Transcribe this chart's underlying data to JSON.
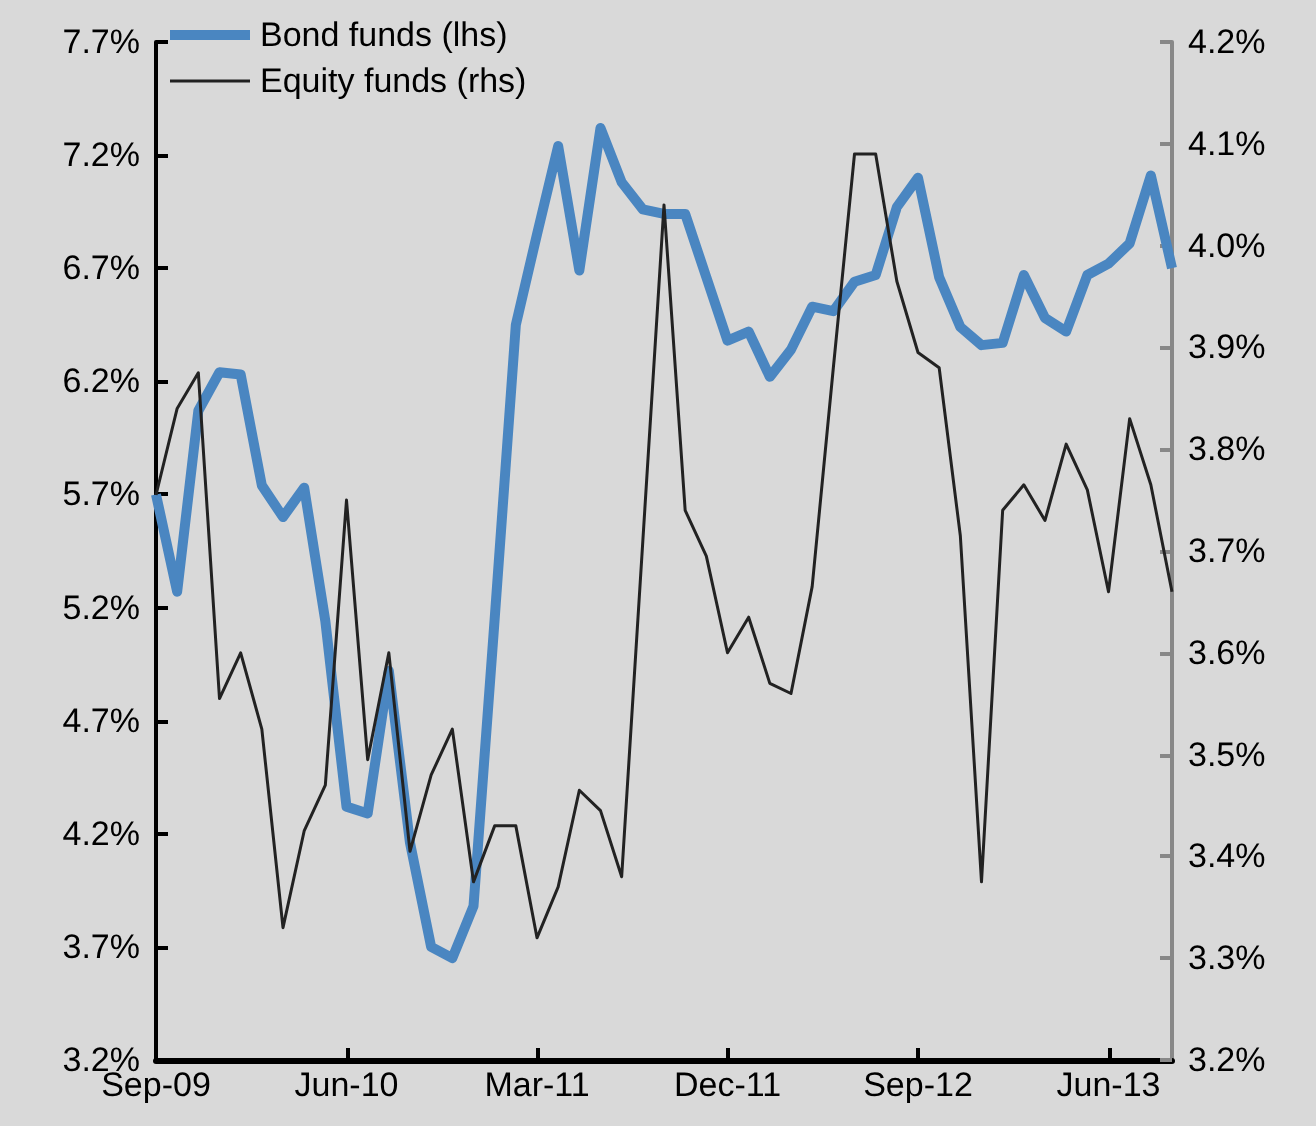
{
  "chart_data": {
    "type": "line",
    "categories": [
      "Sep-09",
      null,
      null,
      null,
      null,
      null,
      null,
      null,
      null,
      "Jun-10",
      null,
      null,
      null,
      null,
      null,
      null,
      null,
      null,
      "Mar-11",
      null,
      null,
      null,
      null,
      null,
      null,
      null,
      null,
      "Dec-11",
      null,
      null,
      null,
      null,
      null,
      null,
      null,
      null,
      "Sep-12",
      null,
      null,
      null,
      null,
      null,
      null,
      null,
      null,
      "Jun-13",
      null,
      null,
      null
    ],
    "series": [
      {
        "name": "Bond funds (lhs)",
        "color": "#4a86c1",
        "values": [
          5.7,
          5.27,
          6.07,
          6.24,
          6.23,
          5.74,
          5.6,
          5.73,
          5.14,
          4.32,
          4.29,
          4.92,
          4.16,
          3.7,
          3.65,
          3.88,
          5.15,
          6.45,
          6.85,
          7.24,
          6.69,
          7.32,
          7.08,
          6.96,
          6.94,
          6.94,
          6.66,
          6.38,
          6.42,
          6.22,
          6.34,
          6.53,
          6.51,
          6.64,
          6.67,
          6.97,
          7.1,
          6.66,
          6.44,
          6.36,
          6.37,
          6.67,
          6.48,
          6.42,
          6.67,
          6.72,
          6.81,
          7.11,
          6.7
        ]
      },
      {
        "name": "Equity funds (rhs)",
        "color": "#222222",
        "axis": "y2",
        "values": [
          3.755,
          3.84,
          3.875,
          3.555,
          3.6,
          3.525,
          3.33,
          3.425,
          3.47,
          3.75,
          3.495,
          3.6,
          3.405,
          3.48,
          3.525,
          3.375,
          3.43,
          3.43,
          3.32,
          3.37,
          3.465,
          3.445,
          3.38,
          3.71,
          4.04,
          3.74,
          3.695,
          3.6,
          3.635,
          3.57,
          3.56,
          3.665,
          3.88,
          4.09,
          4.09,
          3.965,
          3.895,
          3.88,
          3.715,
          3.375,
          3.74,
          3.765,
          3.73,
          3.805,
          3.76,
          3.66,
          3.83,
          3.765,
          3.66
        ]
      }
    ],
    "ylim": [
      3.2,
      7.7
    ],
    "yticks": [
      {
        "value": 3.2,
        "label": "3.2%"
      },
      {
        "value": 3.7,
        "label": "3.7%"
      },
      {
        "value": 4.2,
        "label": "4.2%"
      },
      {
        "value": 4.7,
        "label": "4.7%"
      },
      {
        "value": 5.2,
        "label": "5.2%"
      },
      {
        "value": 5.7,
        "label": "5.7%"
      },
      {
        "value": 6.2,
        "label": "6.2%"
      },
      {
        "value": 6.7,
        "label": "6.7%"
      },
      {
        "value": 7.2,
        "label": "7.2%"
      },
      {
        "value": 7.7,
        "label": "7.7%"
      }
    ],
    "y2lim": [
      3.2,
      4.2
    ],
    "y2ticks": [
      {
        "value": 3.2,
        "label": "3.2%"
      },
      {
        "value": 3.3,
        "label": "3.3%"
      },
      {
        "value": 3.4,
        "label": "3.4%"
      },
      {
        "value": 3.5,
        "label": "3.5%"
      },
      {
        "value": 3.6,
        "label": "3.6%"
      },
      {
        "value": 3.7,
        "label": "3.7%"
      },
      {
        "value": 3.8,
        "label": "3.8%"
      },
      {
        "value": 3.9,
        "label": "3.9%"
      },
      {
        "value": 4.0,
        "label": "4.0%"
      },
      {
        "value": 4.1,
        "label": "4.1%"
      },
      {
        "value": 4.2,
        "label": "4.2%"
      }
    ],
    "legend": "top left",
    "grid": false,
    "marker": "none"
  }
}
